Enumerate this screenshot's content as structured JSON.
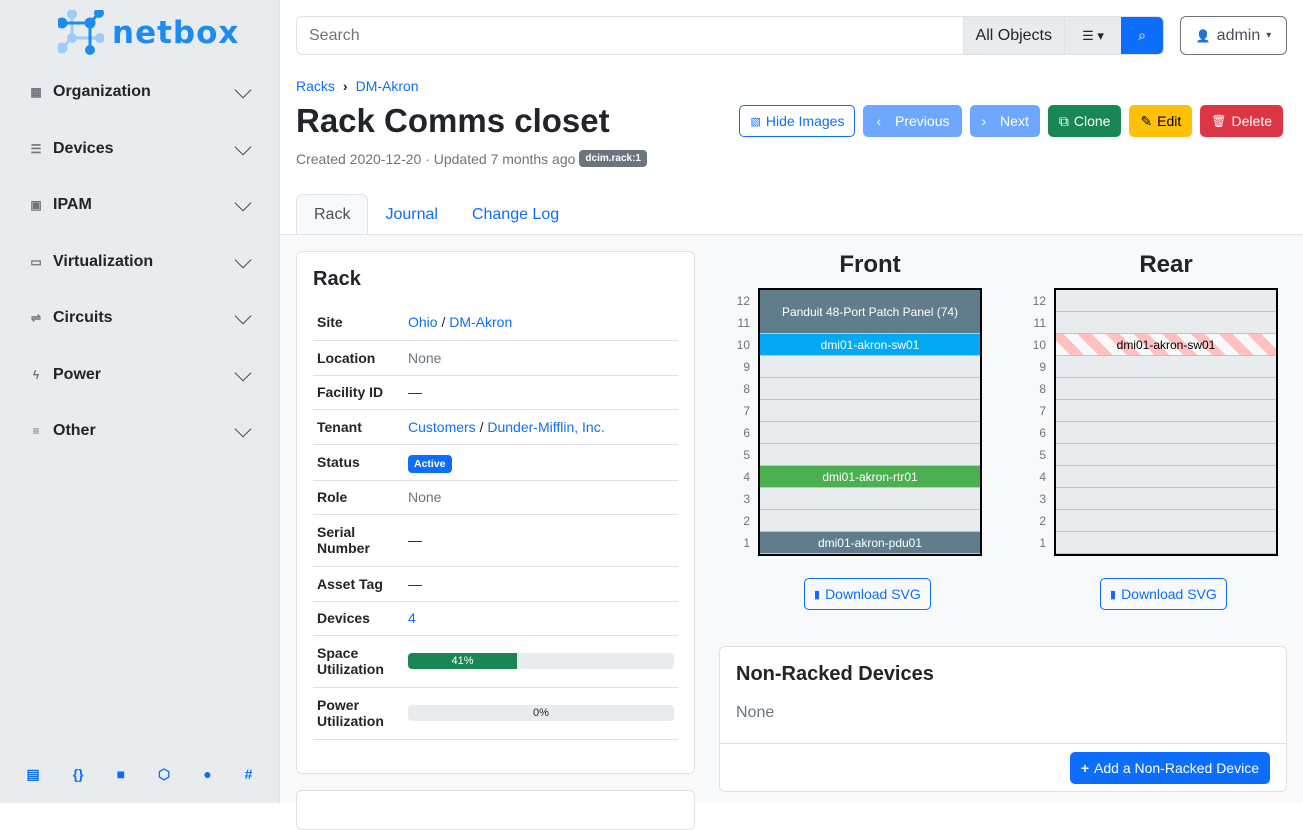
{
  "brand": {
    "name": "netbox",
    "color": "#1c8cf2"
  },
  "sidebar": {
    "items": [
      {
        "label": "Organization",
        "icon": "building-icon"
      },
      {
        "label": "Devices",
        "icon": "server-icon"
      },
      {
        "label": "IPAM",
        "icon": "ipam-icon"
      },
      {
        "label": "Virtualization",
        "icon": "monitor-icon"
      },
      {
        "label": "Circuits",
        "icon": "circuits-icon"
      },
      {
        "label": "Power",
        "icon": "power-icon"
      },
      {
        "label": "Other",
        "icon": "other-icon"
      }
    ],
    "footer_icons": [
      "docs-icon",
      "api-icon",
      "book-icon",
      "graphql-icon",
      "github-icon",
      "slack-icon"
    ]
  },
  "search": {
    "placeholder": "Search",
    "scope": "All Objects"
  },
  "user": {
    "name": "admin"
  },
  "breadcrumb": [
    "Racks",
    "DM-Akron"
  ],
  "title": "Rack Comms closet",
  "meta": {
    "created": "Created 2020-12-20 · Updated 7 months ago",
    "badge": "dcim.rack:1"
  },
  "actions": {
    "hide_images": "Hide Images",
    "previous": "Previous",
    "next": "Next",
    "clone": "Clone",
    "edit": "Edit",
    "delete": "Delete"
  },
  "tabs": [
    "Rack",
    "Journal",
    "Change Log"
  ],
  "rack_card": {
    "title": "Rack",
    "site": {
      "label": "Site",
      "region": "Ohio",
      "site": "DM-Akron"
    },
    "location": {
      "label": "Location",
      "value": "None"
    },
    "facility": {
      "label": "Facility ID",
      "value": "—"
    },
    "tenant": {
      "label": "Tenant",
      "group": "Customers",
      "tenant": "Dunder-Mifflin, Inc."
    },
    "status": {
      "label": "Status",
      "value": "Active"
    },
    "role": {
      "label": "Role",
      "value": "None"
    },
    "serial": {
      "label": "Serial Number",
      "value": "—"
    },
    "asset": {
      "label": "Asset Tag",
      "value": "—"
    },
    "devices": {
      "label": "Devices",
      "value": "4"
    },
    "space": {
      "label": "Space Utilization",
      "percent": 41,
      "text": "41%"
    },
    "power": {
      "label": "Power Utilization",
      "percent": 0,
      "text": "0%"
    }
  },
  "elevations": {
    "front": {
      "title": "Front",
      "devices": [
        {
          "name": "Panduit 48-Port Patch Panel (74)",
          "top": 12,
          "height": 2,
          "color": "#607d8b"
        },
        {
          "name": "dmi01-akron-sw01",
          "top": 10,
          "height": 1,
          "color": "#03a9f4"
        },
        {
          "name": "dmi01-akron-rtr01",
          "top": 4,
          "height": 1,
          "color": "#4caf50"
        },
        {
          "name": "dmi01-akron-pdu01",
          "top": 1,
          "height": 1,
          "color": "#607d8b"
        }
      ]
    },
    "rear": {
      "title": "Rear",
      "devices": [
        {
          "name": "dmi01-akron-sw01",
          "top": 10,
          "height": 1,
          "color": "striped"
        }
      ]
    },
    "units": 12,
    "download": "Download SVG"
  },
  "non_racked": {
    "title": "Non-Racked Devices",
    "value": "None",
    "add": "Add a Non-Racked Device"
  }
}
